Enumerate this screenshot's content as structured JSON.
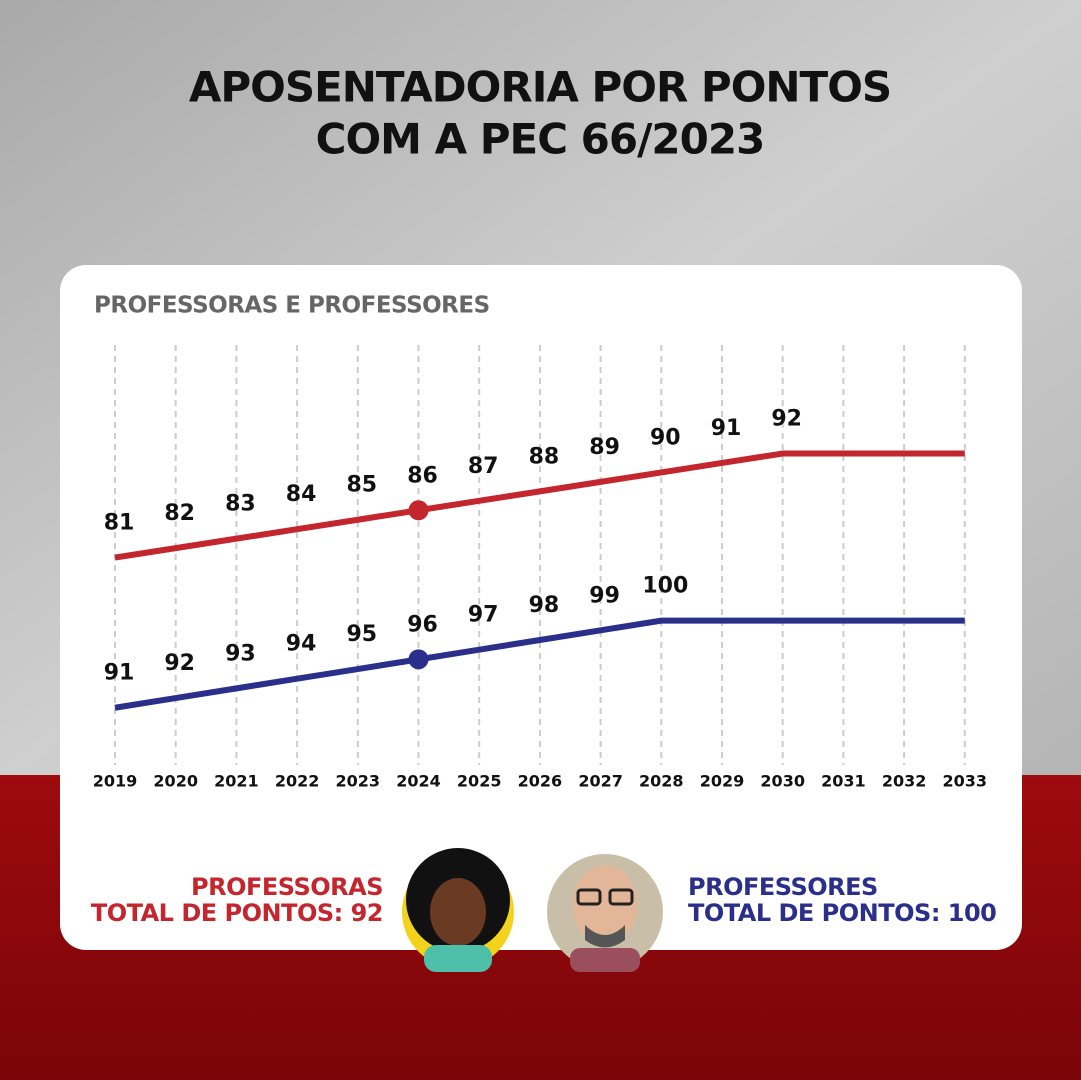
{
  "chart_data": {
    "type": "line",
    "title": [
      "APOSENTADORIA POR PONTOS",
      "COM A PEC 66/2023"
    ],
    "subtitle": "PROFESSORAS E PROFESSORES",
    "categories": [
      "2019",
      "2020",
      "2021",
      "2022",
      "2023",
      "2024",
      "2025",
      "2026",
      "2027",
      "2028",
      "2029",
      "2030",
      "2031",
      "2032",
      "2033"
    ],
    "grid": true,
    "highlight": 5,
    "series": [
      {
        "name": "PROFESSORAS",
        "total_label": "TOTAL DE PONTOS: 92",
        "color": "#c4262e",
        "ylim": [
          59.6,
          104
        ],
        "values": [
          81,
          82,
          83,
          84,
          85,
          86,
          87,
          88,
          89,
          90,
          91,
          92,
          92,
          92,
          92
        ],
        "value_labels": [
          "81",
          "82",
          "83",
          "84",
          "85",
          "86",
          "87",
          "88",
          "89",
          "90",
          "91",
          "92",
          null,
          null,
          null
        ]
      },
      {
        "name": "PROFESSORES",
        "total_label": "TOTAL DE PONTOS: 100",
        "color": "#2b2f8c",
        "ylim": [
          85.6,
          129
        ],
        "values": [
          91,
          92,
          93,
          94,
          95,
          96,
          97,
          98,
          99,
          100,
          100,
          100,
          100,
          100,
          100
        ],
        "value_labels": [
          "91",
          "92",
          "93",
          "94",
          "95",
          "96",
          "97",
          "98",
          "99",
          "100",
          null,
          null,
          null,
          null,
          null
        ]
      }
    ]
  }
}
